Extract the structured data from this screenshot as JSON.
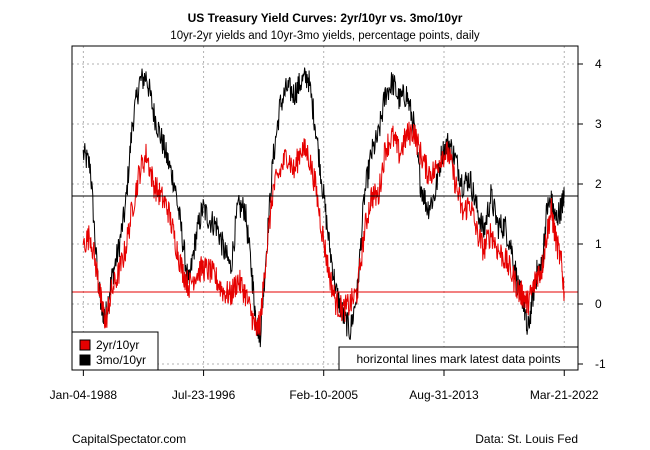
{
  "chart_data": {
    "type": "line",
    "title": "US Treasury Yield Curves: 2yr/10yr vs. 3mo/10yr",
    "subtitle": "10yr-2yr yields and 10yr-3mo yields, percentage points, daily",
    "xlabel": "",
    "ylabel": "",
    "x_tick_labels": [
      "Jan-04-1988",
      "Jul-23-1996",
      "Feb-10-2005",
      "Aug-31-2013",
      "Mar-21-2022"
    ],
    "y_ticks": [
      -1,
      0,
      1,
      2,
      3,
      4
    ],
    "ylim": [
      -1.1,
      4.3
    ],
    "xlim": [
      1987.2,
      2023.2
    ],
    "grid": true,
    "legend_position": "bottom-left",
    "series": [
      {
        "name": "2yr/10yr",
        "color": "#e60000",
        "x": [
          1988.0,
          1988.5,
          1989.0,
          1989.3,
          1989.6,
          1990.0,
          1990.5,
          1991.0,
          1991.5,
          1992.0,
          1992.5,
          1993.0,
          1993.5,
          1994.0,
          1994.5,
          1995.0,
          1995.5,
          1996.0,
          1996.5,
          1997.0,
          1997.5,
          1998.0,
          1998.5,
          1999.0,
          1999.5,
          2000.0,
          2000.3,
          2000.6,
          2001.0,
          2001.5,
          2002.0,
          2002.5,
          2003.0,
          2003.5,
          2004.0,
          2004.5,
          2005.0,
          2005.5,
          2006.0,
          2006.5,
          2007.0,
          2007.5,
          2008.0,
          2008.5,
          2009.0,
          2009.5,
          2010.0,
          2010.5,
          2011.0,
          2011.5,
          2012.0,
          2012.5,
          2013.0,
          2013.5,
          2014.0,
          2014.5,
          2015.0,
          2015.5,
          2016.0,
          2016.5,
          2017.0,
          2017.5,
          2018.0,
          2018.5,
          2019.0,
          2019.3,
          2019.6,
          2020.0,
          2020.3,
          2020.6,
          2021.0,
          2021.3,
          2021.6,
          2022.0,
          2022.22
        ],
        "values": [
          1.0,
          1.15,
          0.5,
          0.0,
          -0.3,
          0.2,
          0.5,
          0.9,
          1.6,
          2.2,
          2.5,
          2.0,
          1.8,
          1.6,
          1.1,
          0.6,
          0.3,
          0.5,
          0.6,
          0.55,
          0.4,
          0.2,
          0.15,
          0.4,
          0.2,
          -0.2,
          -0.45,
          -0.3,
          0.8,
          1.9,
          2.2,
          2.5,
          2.2,
          2.6,
          2.5,
          2.0,
          1.2,
          0.5,
          0.0,
          -0.1,
          0.0,
          0.2,
          1.2,
          1.8,
          1.8,
          2.6,
          2.8,
          2.5,
          2.8,
          2.9,
          2.5,
          2.2,
          2.2,
          2.5,
          2.5,
          2.0,
          1.5,
          1.7,
          1.2,
          0.9,
          1.2,
          0.9,
          0.75,
          0.5,
          0.2,
          0.15,
          0.0,
          0.25,
          0.5,
          0.55,
          1.2,
          1.55,
          1.1,
          0.7,
          0.2
        ]
      },
      {
        "name": "3mo/10yr",
        "color": "#000000",
        "x": [
          1988.0,
          1988.5,
          1989.0,
          1989.3,
          1989.6,
          1990.0,
          1990.5,
          1991.0,
          1991.5,
          1992.0,
          1992.5,
          1993.0,
          1993.5,
          1994.0,
          1994.5,
          1995.0,
          1995.5,
          1996.0,
          1996.5,
          1997.0,
          1997.5,
          1998.0,
          1998.5,
          1999.0,
          1999.5,
          2000.0,
          2000.3,
          2000.6,
          2001.0,
          2001.5,
          2002.0,
          2002.5,
          2003.0,
          2003.5,
          2004.0,
          2004.5,
          2005.0,
          2005.5,
          2006.0,
          2006.5,
          2007.0,
          2007.5,
          2008.0,
          2008.5,
          2009.0,
          2009.5,
          2010.0,
          2010.5,
          2011.0,
          2011.5,
          2012.0,
          2012.5,
          2013.0,
          2013.5,
          2014.0,
          2014.5,
          2015.0,
          2015.5,
          2016.0,
          2016.5,
          2017.0,
          2017.5,
          2018.0,
          2018.5,
          2019.0,
          2019.3,
          2019.6,
          2020.0,
          2020.3,
          2020.6,
          2021.0,
          2021.3,
          2021.6,
          2022.0,
          2022.22
        ],
        "values": [
          2.5,
          2.3,
          0.5,
          -0.1,
          -0.2,
          0.4,
          0.9,
          1.6,
          3.0,
          3.7,
          3.8,
          3.2,
          2.8,
          2.4,
          2.0,
          1.2,
          0.3,
          1.1,
          1.6,
          1.4,
          1.3,
          0.9,
          0.6,
          1.6,
          1.6,
          0.5,
          -0.3,
          -0.5,
          0.8,
          2.4,
          3.3,
          3.6,
          3.5,
          3.7,
          3.8,
          3.0,
          2.0,
          1.0,
          0.2,
          -0.2,
          -0.45,
          0.2,
          1.8,
          2.5,
          2.8,
          3.5,
          3.7,
          3.4,
          3.5,
          3.0,
          2.0,
          1.6,
          1.8,
          2.5,
          2.7,
          2.4,
          2.0,
          2.1,
          1.6,
          1.2,
          1.8,
          1.3,
          1.3,
          0.9,
          0.2,
          0.1,
          -0.5,
          0.15,
          0.55,
          0.6,
          1.6,
          1.7,
          1.4,
          1.6,
          1.8
        ]
      }
    ],
    "reference_lines": [
      {
        "value": 1.8,
        "color": "#000000"
      },
      {
        "value": 0.2,
        "color": "#e60000"
      }
    ],
    "annotation": "horizontal lines mark latest data points"
  },
  "footer": {
    "credit": "CapitalSpectator.com",
    "source": "Data: St. Louis Fed"
  }
}
